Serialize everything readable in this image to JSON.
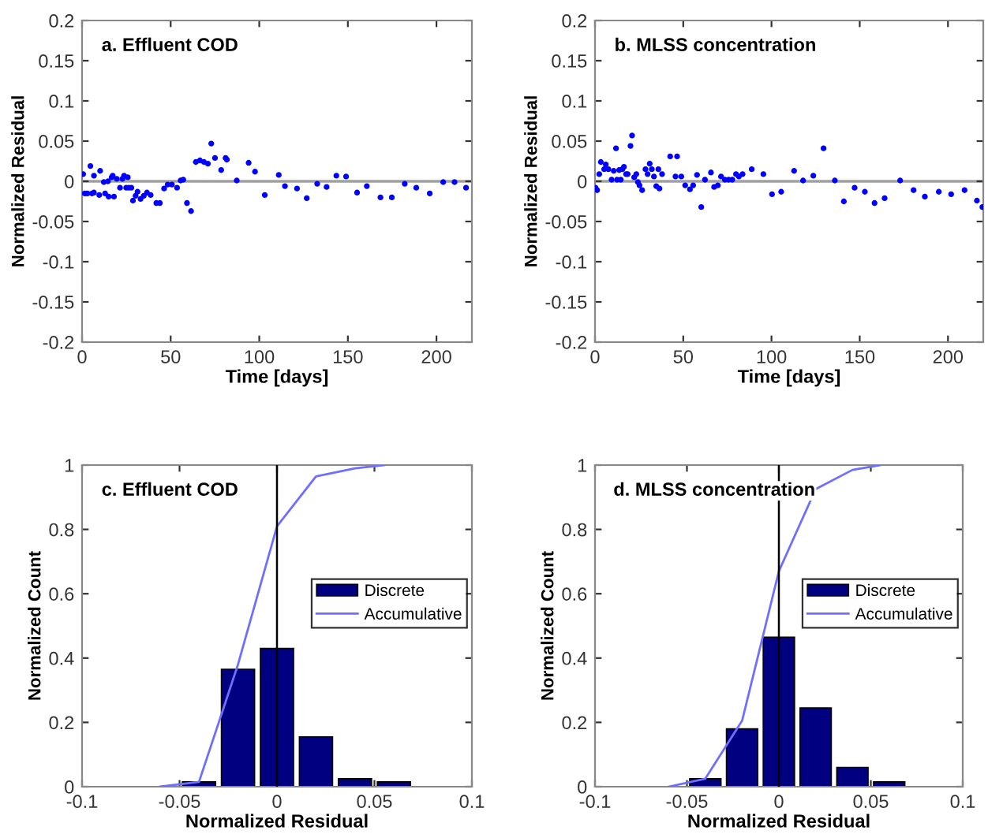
{
  "chart_data": [
    {
      "type": "scatter",
      "title": "a. Effluent COD",
      "xlabel": "Time [days]",
      "ylabel": "Normalized Residual",
      "marker": "circle",
      "grid": false,
      "xlim": [
        0,
        220
      ],
      "ylim": [
        -0.2,
        0.2
      ],
      "xticks": [
        0,
        50,
        100,
        150,
        200
      ],
      "yticks": [
        -0.2,
        -0.15,
        -0.1,
        -0.05,
        0,
        0.05,
        0.1,
        0.15,
        0.2
      ],
      "ref_lines": [
        {
          "axis": "y",
          "value": 0,
          "color": "#a0a0a0"
        }
      ],
      "series": [
        {
          "color": "#0000ff",
          "x": [
            0.6,
            1.5,
            3,
            4.7,
            5.6,
            6.7,
            6.7,
            9.7,
            10.2,
            12.3,
            13,
            14.6,
            15,
            16.7,
            17.3,
            18,
            19.6,
            21.4,
            22.8,
            23.7,
            24.9,
            25.8,
            26.4,
            27.8,
            28.7,
            30.2,
            31.3,
            33,
            34.8,
            36.6,
            38.7,
            41.9,
            43.9,
            46.3,
            48.3,
            50.7,
            53.6,
            55.6,
            57.1,
            59.2,
            61.5,
            64.2,
            66.5,
            68.8,
            71,
            72.9,
            75,
            78.5,
            81,
            81.7,
            87.3,
            94,
            97.6,
            103.1,
            111,
            114.5,
            121.3,
            126.8,
            132.7,
            138,
            143.5,
            149,
            155.2,
            160.7,
            168.4,
            174.8,
            182.1,
            188.6,
            196.2,
            203.8,
            210.2,
            216.7
          ],
          "values": [
            0.009,
            -0.015,
            -0.015,
            0.019,
            -0.015,
            0.007,
            -0.014,
            -0.017,
            0.013,
            -0.001,
            -0.015,
            0,
            -0.019,
            0.005,
            0.007,
            -0.019,
            0.003,
            -0.008,
            0.003,
            0.007,
            -0.008,
            0.005,
            -0.008,
            -0.008,
            -0.024,
            -0.018,
            -0.013,
            -0.022,
            -0.018,
            -0.014,
            -0.017,
            -0.027,
            -0.027,
            -0.009,
            -0.004,
            -0.004,
            -0.008,
            0.001,
            0.002,
            -0.027,
            -0.037,
            0.024,
            0.026,
            0.024,
            0.022,
            0.047,
            0.029,
            0.014,
            0.029,
            0.027,
            0.001,
            0.023,
            0.012,
            -0.017,
            0.008,
            -0.006,
            -0.009,
            -0.021,
            -0.003,
            -0.007,
            0.007,
            0.006,
            -0.014,
            -0.006,
            -0.02,
            -0.02,
            -0.003,
            -0.008,
            -0.015,
            -0.001,
            -0.001,
            -0.008
          ]
        }
      ]
    },
    {
      "type": "scatter",
      "title": "b. MLSS concentration",
      "xlabel": "Time [days]",
      "ylabel": "Normalized Residual",
      "marker": "circle",
      "grid": false,
      "xlim": [
        0,
        220
      ],
      "ylim": [
        -0.2,
        0.2
      ],
      "xticks": [
        0,
        50,
        100,
        150,
        200
      ],
      "yticks": [
        -0.2,
        -0.15,
        -0.1,
        -0.05,
        0,
        0.05,
        0.1,
        0.15,
        0.2
      ],
      "ref_lines": [
        {
          "axis": "y",
          "value": 0,
          "color": "#a0a0a0"
        }
      ],
      "series": [
        {
          "color": "#0000ff",
          "x": [
            0.3,
            1.2,
            2.4,
            3.3,
            5.2,
            6.1,
            7.6,
            9.4,
            10.6,
            11.9,
            12.5,
            13.7,
            14.6,
            15.5,
            16.4,
            17.6,
            18.5,
            20.1,
            21,
            22.2,
            23.4,
            24.3,
            25.2,
            26.7,
            28.6,
            29.8,
            31,
            32.2,
            33.4,
            34.7,
            35.9,
            36.5,
            38,
            42.6,
            46.5,
            45.6,
            48.9,
            51.1,
            53.8,
            55.6,
            57.8,
            60.2,
            62.3,
            65.7,
            67.5,
            69.6,
            71.4,
            73.6,
            75.7,
            77.8,
            79.9,
            81.5,
            83.6,
            88.8,
            95.4,
            100.3,
            105.5,
            112.8,
            117.9,
            123.7,
            129.5,
            135.9,
            141,
            147.1,
            152.9,
            158.4,
            164.1,
            172.9,
            180.5,
            186.9,
            194.8,
            201.8,
            209.4,
            216.4,
            219.5
          ],
          "values": [
            -0.008,
            -0.011,
            0.009,
            0.024,
            0.015,
            0.021,
            0.015,
            0.002,
            0.013,
            0.041,
            0.002,
            0.014,
            0.002,
            0.015,
            0.018,
            0.009,
            0.009,
            0.044,
            0.057,
            0.005,
            0.009,
            -0.001,
            -0.005,
            -0.011,
            0.015,
            0.009,
            0.022,
            0.015,
            0.006,
            -0.006,
            0.015,
            -0.009,
            0.009,
            0.031,
            0.031,
            0.006,
            0.006,
            -0.005,
            -0.01,
            -0.005,
            0.008,
            -0.032,
            0.002,
            0.011,
            -0.007,
            -0.005,
            0.006,
            0.002,
            0.002,
            0.002,
            0.009,
            0.006,
            0.009,
            0.015,
            0.009,
            -0.016,
            -0.013,
            0.013,
            0.001,
            0.007,
            0.041,
            0.001,
            -0.025,
            -0.008,
            -0.013,
            -0.027,
            -0.021,
            0.001,
            -0.011,
            -0.019,
            -0.013,
            -0.016,
            -0.011,
            -0.024,
            -0.032
          ]
        }
      ]
    },
    {
      "type": "bar",
      "title": "c. Effluent COD",
      "xlabel": "Normalized Residual",
      "ylabel": "Normalized Count",
      "grid": false,
      "legend": "right",
      "xlim": [
        -0.1,
        0.1
      ],
      "ylim": [
        0,
        1
      ],
      "xticks": [
        -0.1,
        -0.05,
        0,
        0.05,
        0.1
      ],
      "yticks": [
        0,
        0.2,
        0.4,
        0.6,
        0.8,
        1
      ],
      "ref_lines": [
        {
          "axis": "x",
          "value": 0,
          "color": "#000000"
        }
      ],
      "series": [
        {
          "name": "Discrete",
          "type": "bar",
          "color": "#000080",
          "x": [
            -0.04,
            -0.02,
            0,
            0.02,
            0.04,
            0.06
          ],
          "values": [
            0.015,
            0.365,
            0.43,
            0.155,
            0.025,
            0.015
          ]
        },
        {
          "name": "Accumulative",
          "type": "line",
          "color": "#6f6fff",
          "x": [
            -0.06,
            -0.04,
            -0.02,
            0,
            0.02,
            0.04,
            0.055
          ],
          "values": [
            0,
            0.015,
            0.38,
            0.81,
            0.965,
            0.99,
            1.0
          ]
        }
      ]
    },
    {
      "type": "bar",
      "title": "d. MLSS concentration",
      "xlabel": "Normalized Residual",
      "ylabel": "Normalized Count",
      "grid": false,
      "legend": "right",
      "xlim": [
        -0.1,
        0.1
      ],
      "ylim": [
        0,
        1
      ],
      "xticks": [
        -0.1,
        -0.05,
        0,
        0.05,
        0.1
      ],
      "yticks": [
        0,
        0.2,
        0.4,
        0.6,
        0.8,
        1
      ],
      "ref_lines": [
        {
          "axis": "x",
          "value": 0,
          "color": "#000000"
        }
      ],
      "series": [
        {
          "name": "Discrete",
          "type": "bar",
          "color": "#000080",
          "x": [
            -0.04,
            -0.02,
            0,
            0.02,
            0.04,
            0.06
          ],
          "values": [
            0.025,
            0.18,
            0.465,
            0.245,
            0.06,
            0.015
          ]
        },
        {
          "name": "Accumulative",
          "type": "line",
          "color": "#6f6fff",
          "x": [
            -0.06,
            -0.04,
            -0.02,
            0,
            0.02,
            0.04,
            0.055
          ],
          "values": [
            0,
            0.025,
            0.205,
            0.67,
            0.925,
            0.985,
            1.0
          ]
        }
      ]
    }
  ]
}
